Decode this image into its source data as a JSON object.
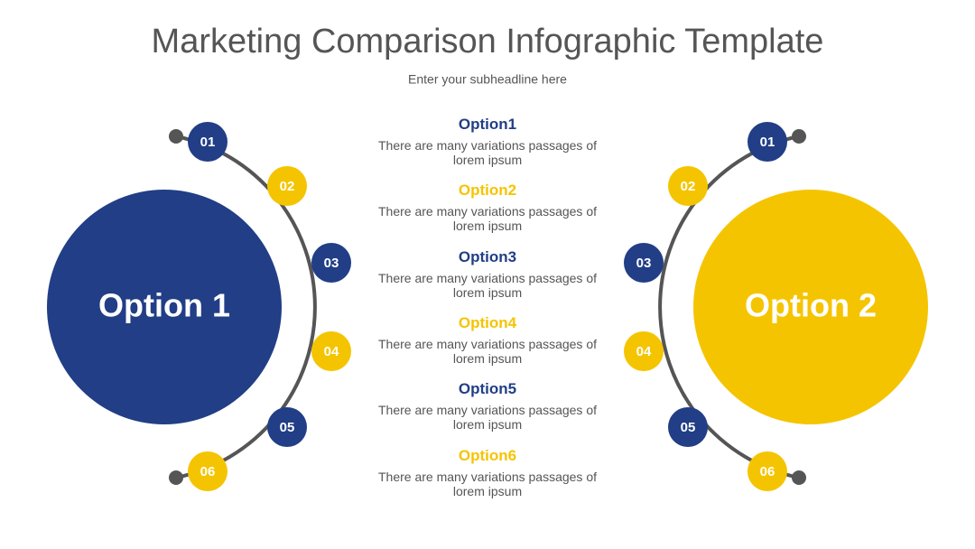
{
  "header": {
    "title": "Marketing Comparison Infographic Template",
    "subtitle": "Enter your subheadline here"
  },
  "left": {
    "label": "Option 1",
    "steps": [
      "01",
      "02",
      "03",
      "04",
      "05",
      "06"
    ]
  },
  "right": {
    "label": "Option 2",
    "steps": [
      "01",
      "02",
      "03",
      "04",
      "05",
      "06"
    ]
  },
  "options": [
    {
      "title": "Option1",
      "text": "There are many variations passages of lorem ipsum"
    },
    {
      "title": "Option2",
      "text": "There are many variations passages of lorem ipsum"
    },
    {
      "title": "Option3",
      "text": "There are many variations passages of lorem ipsum"
    },
    {
      "title": "Option4",
      "text": "There are many variations passages of lorem ipsum"
    },
    {
      "title": "Option5",
      "text": "There are many variations passages of lorem ipsum"
    },
    {
      "title": "Option6",
      "text": "There are many variations passages of lorem ipsum"
    }
  ]
}
